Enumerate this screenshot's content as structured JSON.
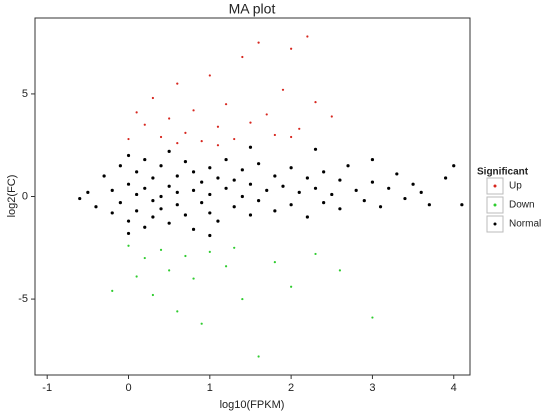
{
  "chart_data": {
    "type": "scatter",
    "title": "MA plot",
    "x_label": "log10(FPKM)",
    "y_label": "log2(FC)",
    "xlim": [
      -1.15,
      4.2
    ],
    "ylim": [
      -8.7,
      8.7
    ],
    "xticks": [
      -1,
      0,
      1,
      2,
      3,
      4
    ],
    "yticks": [
      -5,
      0,
      5
    ],
    "legend_title": "Significant",
    "legend_position": "right",
    "series": [
      {
        "name": "Up",
        "color": "#d7261e",
        "x": [
          0.0,
          0.2,
          0.3,
          0.4,
          0.5,
          0.6,
          0.7,
          0.8,
          0.9,
          1.0,
          1.1,
          1.2,
          1.3,
          1.4,
          1.5,
          1.6,
          1.7,
          1.8,
          1.9,
          2.0,
          2.1,
          2.2,
          2.3,
          2.5,
          0.1,
          1.1,
          0.6,
          2.0
        ],
        "y": [
          2.8,
          3.5,
          4.8,
          2.9,
          3.8,
          5.5,
          3.1,
          4.2,
          2.7,
          5.9,
          3.4,
          4.5,
          2.8,
          6.8,
          3.6,
          7.5,
          4.0,
          3.0,
          5.2,
          7.2,
          3.3,
          7.8,
          4.6,
          3.9,
          4.1,
          2.5,
          2.6,
          2.9
        ]
      },
      {
        "name": "Down",
        "color": "#2ecc2e",
        "x": [
          0.0,
          0.2,
          0.3,
          0.4,
          0.5,
          0.6,
          0.7,
          0.8,
          0.9,
          1.0,
          1.2,
          1.4,
          1.6,
          1.8,
          2.0,
          2.3,
          2.6,
          3.0,
          0.1,
          1.3,
          -0.2
        ],
        "y": [
          -2.4,
          -3.0,
          -4.8,
          -2.6,
          -3.6,
          -5.6,
          -2.9,
          -4.0,
          -6.2,
          -2.7,
          -3.4,
          -5.0,
          -7.8,
          -3.2,
          -4.4,
          -2.8,
          -3.6,
          -5.9,
          -3.9,
          -2.5,
          -4.6
        ]
      },
      {
        "name": "Normal",
        "color": "#000000",
        "x": [
          -0.5,
          -0.4,
          -0.3,
          -0.2,
          -0.2,
          -0.1,
          -0.1,
          0,
          0,
          0,
          0.1,
          0.1,
          0.1,
          0.2,
          0.2,
          0.2,
          0.3,
          0.3,
          0.3,
          0.4,
          0.4,
          0.4,
          0.5,
          0.5,
          0.5,
          0.6,
          0.6,
          0.6,
          0.7,
          0.7,
          0.8,
          0.8,
          0.8,
          0.9,
          0.9,
          1.0,
          1.0,
          1.0,
          1.1,
          1.1,
          1.2,
          1.2,
          1.3,
          1.3,
          1.4,
          1.4,
          1.5,
          1.5,
          1.6,
          1.6,
          1.7,
          1.8,
          1.8,
          1.9,
          2.0,
          2.0,
          2.1,
          2.2,
          2.2,
          2.3,
          2.4,
          2.4,
          2.5,
          2.6,
          2.6,
          2.7,
          2.8,
          2.9,
          3.0,
          3.0,
          3.1,
          3.2,
          3.3,
          3.4,
          3.5,
          3.6,
          3.7,
          3.9,
          4.0,
          4.1,
          2.3,
          1.5,
          -0.6,
          0.0,
          1.0
        ],
        "y": [
          0.2,
          -0.5,
          1.0,
          0.3,
          -0.8,
          1.5,
          -0.3,
          0.6,
          -1.2,
          2.0,
          0.1,
          1.2,
          -0.7,
          0.4,
          -1.5,
          1.8,
          0.9,
          -0.2,
          -1.0,
          0.0,
          1.5,
          -0.6,
          0.5,
          2.2,
          -1.3,
          1.0,
          -0.4,
          0.2,
          1.7,
          -0.9,
          0.3,
          1.2,
          -1.6,
          0.7,
          -0.3,
          1.4,
          -0.8,
          0.1,
          0.9,
          -1.2,
          0.4,
          1.8,
          -0.5,
          0.8,
          0.0,
          1.3,
          -0.9,
          0.6,
          1.6,
          -0.2,
          0.3,
          1.0,
          -0.7,
          0.5,
          1.4,
          -0.4,
          0.2,
          0.9,
          -1.0,
          0.4,
          1.2,
          -0.3,
          0.1,
          0.8,
          -0.6,
          1.5,
          0.3,
          -0.2,
          0.7,
          1.8,
          -0.5,
          0.4,
          1.1,
          -0.1,
          0.6,
          0.2,
          -0.4,
          0.9,
          1.5,
          -0.4,
          2.3,
          2.4,
          -0.1,
          -1.8,
          -1.9
        ]
      }
    ]
  }
}
